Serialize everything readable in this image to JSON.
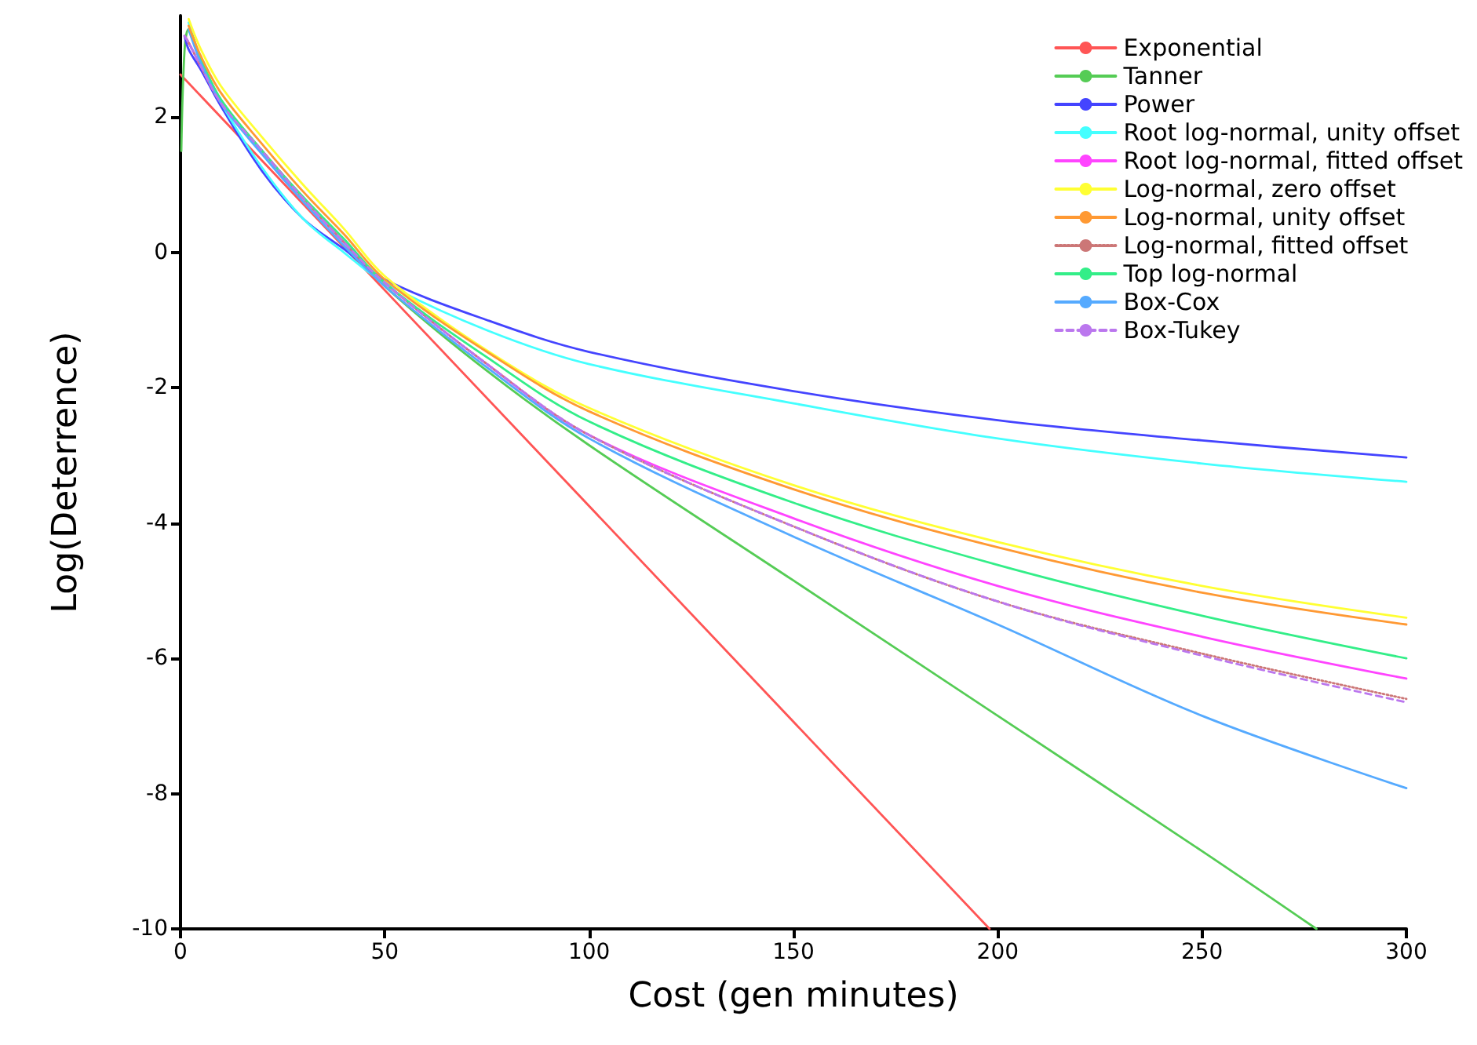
{
  "chart_data": {
    "type": "line",
    "xlabel": "Cost (gen minutes)",
    "ylabel": "Log(Deterrence)",
    "xlim": [
      0,
      300
    ],
    "xticks": [
      0,
      50,
      100,
      150,
      200,
      250,
      300
    ],
    "ylim": [
      -10,
      3.5
    ],
    "yticks": [
      -10,
      -8,
      -6,
      -4,
      -2,
      0,
      2
    ],
    "grid": false,
    "legend": "top right",
    "marker": "none",
    "x": [
      1,
      2,
      5,
      10,
      20,
      30,
      40,
      50,
      75,
      100,
      150,
      200,
      250,
      300
    ],
    "series": [
      {
        "name": "Exponential",
        "color": "#ff5555",
        "line_style": "solid",
        "x": [
          0,
          198
        ],
        "values": [
          2.63,
          -10
        ]
      },
      {
        "name": "Tanner",
        "color": "#55cc55",
        "line_style": "solid",
        "x": [
          0.2,
          1,
          2,
          5,
          10,
          20,
          30,
          40,
          50,
          75,
          100,
          150,
          200,
          250,
          278
        ],
        "values": [
          1.5,
          3.0,
          3.3,
          2.85,
          2.25,
          1.5,
          0.8,
          0.15,
          -0.5,
          -1.75,
          -2.85,
          -4.85,
          -6.85,
          -8.85,
          -10
        ]
      },
      {
        "name": "Power",
        "color": "#4444ff",
        "line_style": "solid",
        "values": [
          3.2,
          3.0,
          2.7,
          2.15,
          1.2,
          0.5,
          0.05,
          -0.4,
          -1.0,
          -1.47,
          -2.05,
          -2.48,
          -2.78,
          -3.03
        ]
      },
      {
        "name": "Root log-normal, unity offset",
        "color": "#44ffff",
        "line_style": "solid",
        "values": [
          null,
          3.4,
          2.8,
          2.2,
          1.25,
          0.5,
          0.0,
          -0.45,
          -1.15,
          -1.65,
          -2.23,
          -2.75,
          -3.12,
          -3.39
        ]
      },
      {
        "name": "Root log-normal, fitted offset",
        "color": "#ff44ff",
        "line_style": "solid",
        "values": [
          3.2,
          3.1,
          2.75,
          2.2,
          1.5,
          0.8,
          0.15,
          -0.45,
          -1.65,
          -2.7,
          -3.93,
          -4.93,
          -5.68,
          -6.3
        ]
      },
      {
        "name": "Log-normal, zero offset",
        "color": "#ffff33",
        "line_style": "solid",
        "values": [
          null,
          3.45,
          3.0,
          2.45,
          1.7,
          1.0,
          0.35,
          -0.35,
          -1.45,
          -2.3,
          -3.44,
          -4.28,
          -4.93,
          -5.4
        ]
      },
      {
        "name": "Log-normal, unity offset",
        "color": "#ff9933",
        "line_style": "solid",
        "values": [
          null,
          3.35,
          2.9,
          2.35,
          1.6,
          0.9,
          0.27,
          -0.4,
          -1.47,
          -2.35,
          -3.5,
          -4.36,
          -5.03,
          -5.5
        ]
      },
      {
        "name": "Log-normal, fitted offset",
        "color": "#cc7777",
        "line_style": "dotted",
        "values": [
          3.2,
          3.1,
          2.75,
          2.2,
          1.5,
          0.8,
          0.15,
          -0.45,
          -1.65,
          -2.7,
          -4.05,
          -5.16,
          -5.93,
          -6.6
        ]
      },
      {
        "name": "Top log-normal",
        "color": "#33ee88",
        "line_style": "solid",
        "values": [
          null,
          3.3,
          2.85,
          2.25,
          1.5,
          0.82,
          0.2,
          -0.45,
          -1.55,
          -2.5,
          -3.7,
          -4.62,
          -5.37,
          -6.0
        ]
      },
      {
        "name": "Box-Cox",
        "color": "#55aaff",
        "line_style": "solid",
        "values": [
          null,
          3.3,
          2.8,
          2.2,
          1.45,
          0.75,
          0.1,
          -0.5,
          -1.7,
          -2.75,
          -4.2,
          -5.5,
          -6.85,
          -7.92
        ]
      },
      {
        "name": "Box-Tukey",
        "color": "#bb77ee",
        "line_style": "dashed",
        "values": [
          3.2,
          3.1,
          2.75,
          2.2,
          1.5,
          0.8,
          0.15,
          -0.45,
          -1.65,
          -2.7,
          -4.05,
          -5.16,
          -5.96,
          -6.65
        ]
      }
    ]
  }
}
